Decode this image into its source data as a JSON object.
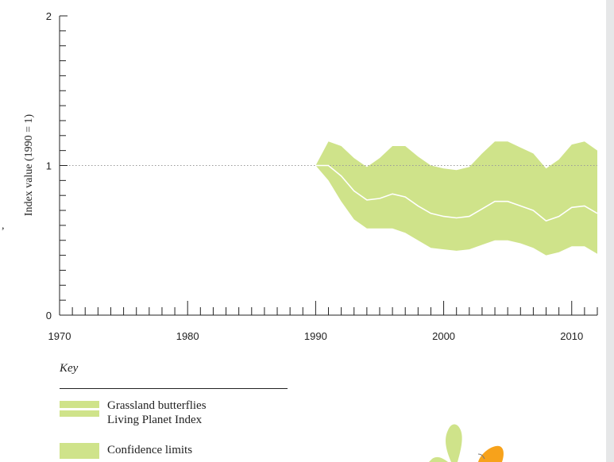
{
  "chart_data": {
    "type": "area",
    "title": "",
    "xlabel": "",
    "ylabel": "Index value (1990 = 1)",
    "xlim": [
      1970,
      2012
    ],
    "ylim": [
      0,
      2
    ],
    "x_ticks": [
      1970,
      1980,
      1990,
      2000,
      2010
    ],
    "y_ticks": [
      0,
      1,
      2
    ],
    "reference_line": {
      "y": 1,
      "style": "dotted"
    },
    "x": [
      1990,
      1991,
      1992,
      1993,
      1994,
      1995,
      1996,
      1997,
      1998,
      1999,
      2000,
      2001,
      2002,
      2003,
      2004,
      2005,
      2006,
      2007,
      2008,
      2009,
      2010,
      2011,
      2012
    ],
    "series": [
      {
        "name": "Grassland butterflies Living Planet Index",
        "values": [
          1.0,
          1.0,
          0.93,
          0.83,
          0.77,
          0.78,
          0.81,
          0.79,
          0.73,
          0.68,
          0.66,
          0.65,
          0.66,
          0.71,
          0.76,
          0.76,
          0.73,
          0.7,
          0.63,
          0.66,
          0.72,
          0.73,
          0.68
        ]
      }
    ],
    "confidence_limits": {
      "name": "Confidence limits",
      "upper": [
        1.0,
        1.16,
        1.13,
        1.05,
        0.99,
        1.05,
        1.13,
        1.13,
        1.06,
        1.0,
        0.98,
        0.97,
        0.99,
        1.08,
        1.16,
        1.16,
        1.12,
        1.08,
        0.98,
        1.04,
        1.14,
        1.16,
        1.1
      ],
      "lower": [
        1.0,
        0.9,
        0.76,
        0.64,
        0.58,
        0.58,
        0.58,
        0.55,
        0.5,
        0.45,
        0.44,
        0.43,
        0.44,
        0.47,
        0.5,
        0.5,
        0.48,
        0.45,
        0.4,
        0.42,
        0.46,
        0.46,
        0.41
      ]
    },
    "legend_placement": "bottom-left",
    "colors": {
      "band": "#cfe38a",
      "line": "#ffffff",
      "axis": "#222222",
      "reference": "#9a9a9a"
    }
  },
  "key": {
    "title": "Key",
    "line_label_1": "Grassland butterflies",
    "line_label_2": "Living Planet Index",
    "band_label": "Confidence limits"
  },
  "edge_fragment": ","
}
